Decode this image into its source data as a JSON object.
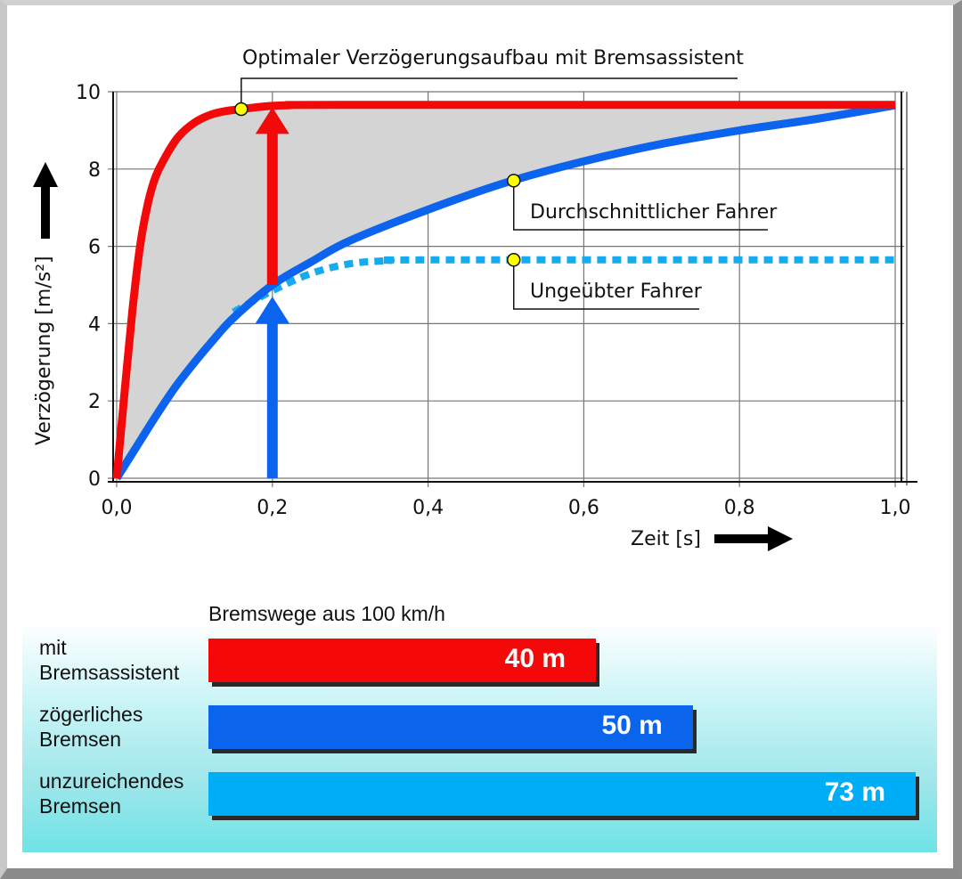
{
  "chart_data": [
    {
      "type": "line",
      "xlabel": "Zeit [s]",
      "ylabel": "Verzögerung [m/s²]",
      "xlim": [
        0,
        1.0
      ],
      "ylim": [
        0,
        10
      ],
      "x_ticks": [
        "0,0",
        "0,2",
        "0,4",
        "0,6",
        "0,8",
        "1,0"
      ],
      "x_tick_values": [
        0,
        0.2,
        0.4,
        0.6,
        0.8,
        1.0
      ],
      "y_ticks": [
        "0",
        "2",
        "4",
        "6",
        "8",
        "10"
      ],
      "y_tick_values": [
        0,
        2,
        4,
        6,
        8,
        10
      ],
      "grid": true,
      "series": [
        {
          "name": "Optimaler Verzögerungsaufbau mit Bremsassistent",
          "color": "#f20a0a",
          "style": "solid",
          "x": [
            0,
            0.01,
            0.02,
            0.03,
            0.04,
            0.05,
            0.065,
            0.08,
            0.1,
            0.12,
            0.14,
            0.16,
            0.19,
            0.22,
            0.3,
            1.0
          ],
          "y": [
            0,
            2.2,
            4.3,
            6.0,
            7.1,
            7.8,
            8.4,
            8.85,
            9.2,
            9.4,
            9.5,
            9.55,
            9.62,
            9.65,
            9.66,
            9.66
          ]
        },
        {
          "name": "Durchschnittlicher Fahrer",
          "color": "#0c64ee",
          "style": "solid",
          "x": [
            0,
            0.025,
            0.05,
            0.075,
            0.1,
            0.125,
            0.15,
            0.2,
            0.25,
            0.3,
            0.4,
            0.5,
            0.6,
            0.7,
            0.8,
            0.9,
            1.0
          ],
          "y": [
            0,
            0.8,
            1.6,
            2.35,
            3.0,
            3.6,
            4.15,
            5.0,
            5.6,
            6.15,
            6.95,
            7.65,
            8.2,
            8.65,
            9.0,
            9.3,
            9.65
          ]
        },
        {
          "name": "Ungeübter Fahrer",
          "color": "#16aaf0",
          "style": "dotted",
          "x": [
            0.15,
            0.2,
            0.25,
            0.3,
            0.35,
            0.4,
            1.0
          ],
          "y": [
            4.3,
            4.85,
            5.3,
            5.55,
            5.63,
            5.65,
            5.65
          ]
        }
      ],
      "annotations": [
        {
          "text": "Optimaler Verzögerungsaufbau mit Bremsassistent",
          "x": 0.16,
          "y": 9.55
        },
        {
          "text": "Durchschnittlicher Fahrer",
          "x": 0.51,
          "y": 7.7
        },
        {
          "text": "Ungeübter Fahrer",
          "x": 0.51,
          "y": 5.65
        }
      ],
      "arrows": [
        {
          "color": "#f20a0a",
          "x": 0.2,
          "from": 5.0,
          "to": 9.6
        },
        {
          "color": "#0c64ee",
          "x": 0.2,
          "from": 0,
          "to": 4.7
        }
      ],
      "fill_between": {
        "color": "#d4d4d4",
        "upper": "Optimaler Verzögerungsaufbau mit Bremsassistent",
        "lower": "Durchschnittlicher Fahrer"
      }
    },
    {
      "type": "bar",
      "orientation": "horizontal",
      "title": "Bremswege aus 100 km/h",
      "categories": [
        "mit Bremsassistent",
        "zögerliches Bremsen",
        "unzureichendes Bremsen"
      ],
      "category_lines": [
        [
          "mit",
          "Bremsassistent"
        ],
        [
          "zögerliches",
          "Bremsen"
        ],
        [
          "unzureichendes",
          "Bremsen"
        ]
      ],
      "values": [
        40,
        50,
        73
      ],
      "unit": "m",
      "value_labels": [
        "40 m",
        "50 m",
        "73 m"
      ],
      "colors": [
        "#f50808",
        "#0b64ec",
        "#00aef8"
      ]
    }
  ]
}
